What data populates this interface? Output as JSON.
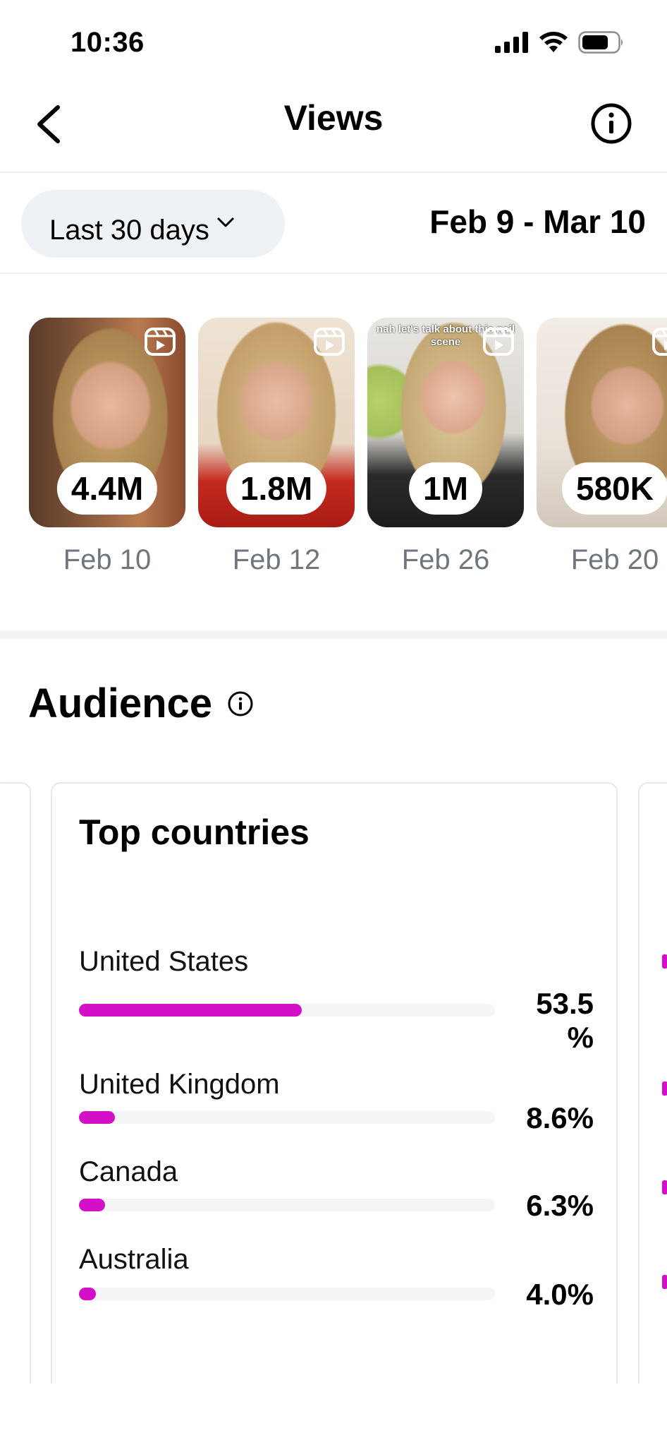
{
  "status_bar": {
    "time": "10:36"
  },
  "nav": {
    "title": "Views",
    "back_icon": "chevron-left-icon",
    "info_icon": "info-icon"
  },
  "filter": {
    "range_label": "Last 30 days",
    "date_range": "Feb 9 - Mar 10"
  },
  "reels": [
    {
      "views": "4.4M",
      "date": "Feb 10"
    },
    {
      "views": "1.8M",
      "date": "Feb 12"
    },
    {
      "views": "1M",
      "date": "Feb 26",
      "caption": "nah let's talk about this nail scene"
    },
    {
      "views": "580K",
      "date": "Feb 20"
    }
  ],
  "audience": {
    "title": "Audience",
    "top_countries": {
      "title": "Top countries",
      "items": [
        {
          "country": "United States",
          "percent_label": "53.5 %",
          "value": 53.5
        },
        {
          "country": "United Kingdom",
          "percent_label": "8.6%",
          "value": 8.6
        },
        {
          "country": "Canada",
          "percent_label": "6.3%",
          "value": 6.3
        },
        {
          "country": "Australia",
          "percent_label": "4.0%",
          "value": 4.0
        }
      ]
    }
  },
  "colors": {
    "accent": "#d40fc8",
    "muted_text": "#6e7680",
    "pill_bg": "#eff2f5"
  }
}
